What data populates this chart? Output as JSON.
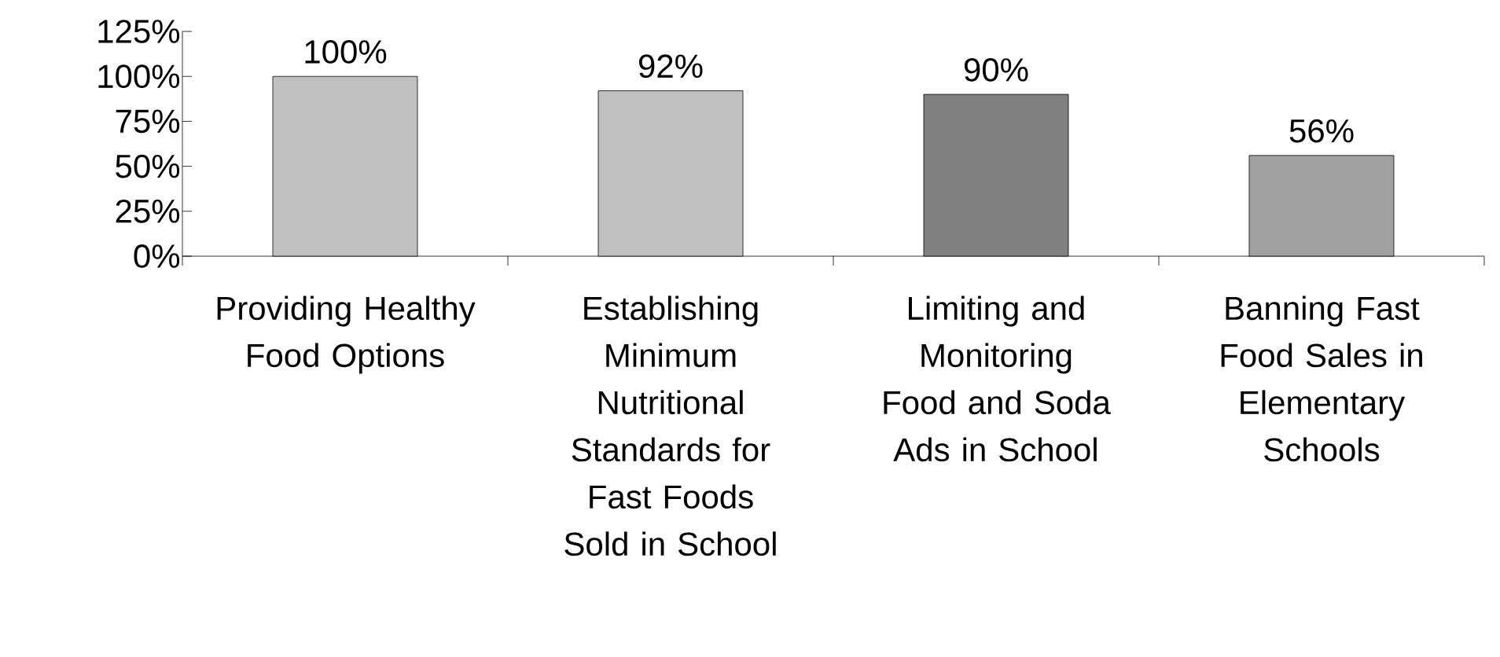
{
  "chart_data": {
    "type": "bar",
    "categories": [
      "Providing Healthy Food Options",
      "Establishing Minimum Nutritional Standards for Fast Foods Sold in School",
      "Limiting and Monitoring Food and Soda Ads in School",
      "Banning Fast Food Sales in Elementary Schools"
    ],
    "values": [
      100,
      92,
      90,
      56
    ],
    "colors": [
      "#c0c0c0",
      "#c0c0c0",
      "#808080",
      "#a0a0a0"
    ],
    "value_labels": [
      "100%",
      "92%",
      "90%",
      "56%"
    ],
    "ylim": [
      0,
      125
    ],
    "yticks": [
      {
        "value": 0,
        "label": "0%"
      },
      {
        "value": 25,
        "label": "25%"
      },
      {
        "value": 50,
        "label": "50%"
      },
      {
        "value": 75,
        "label": "75%"
      },
      {
        "value": 100,
        "label": "100%"
      },
      {
        "value": 125,
        "label": "125%"
      }
    ],
    "grid": false
  }
}
